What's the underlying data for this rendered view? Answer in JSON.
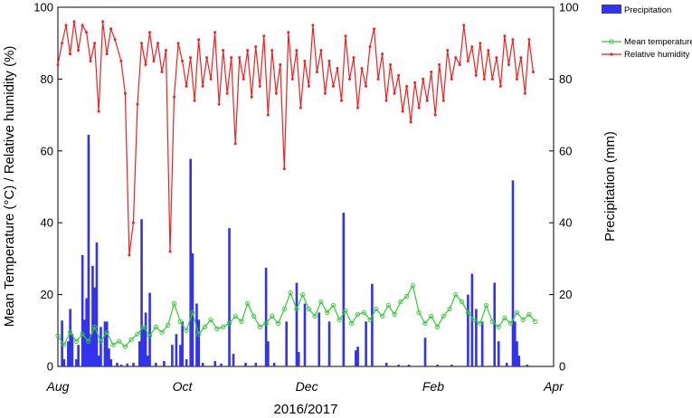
{
  "chart_data": {
    "type": "bar+line",
    "xlabel": "2016/2017",
    "ylabel_left": "Mean Temperature (°C) / Relative humidity (%)",
    "ylabel_right": "Precipitation (mm)",
    "x_ticks": [
      "Aug",
      "Oct",
      "Dec",
      "Feb",
      "Apr"
    ],
    "x_range": [
      "2016-08-01",
      "2017-04-01"
    ],
    "ylim_left": [
      0,
      100
    ],
    "ylim_right": [
      0,
      100
    ],
    "y_ticks_left": [
      "0",
      "20",
      "40",
      "60",
      "80",
      "100"
    ],
    "y_ticks_right": [
      "0",
      "20",
      "40",
      "60",
      "80",
      "100"
    ],
    "legend_position": "top-right",
    "series": [
      {
        "name": "Precipitation",
        "kind": "bar",
        "axis": "right",
        "color": "#3333ee",
        "points": [
          [
            "2016-08-03",
            12.8
          ],
          [
            "2016-08-04",
            2
          ],
          [
            "2016-08-06",
            7
          ],
          [
            "2016-08-07",
            16
          ],
          [
            "2016-08-08",
            9
          ],
          [
            "2016-08-10",
            2
          ],
          [
            "2016-08-11",
            6
          ],
          [
            "2016-08-13",
            31
          ],
          [
            "2016-08-14",
            13
          ],
          [
            "2016-08-15",
            19
          ],
          [
            "2016-08-16",
            64.5
          ],
          [
            "2016-08-17",
            9
          ],
          [
            "2016-08-18",
            28
          ],
          [
            "2016-08-19",
            22
          ],
          [
            "2016-08-20",
            34.5
          ],
          [
            "2016-08-21",
            3
          ],
          [
            "2016-08-22",
            11
          ],
          [
            "2016-08-24",
            12.5
          ],
          [
            "2016-08-25",
            12.5
          ],
          [
            "2016-08-26",
            5
          ],
          [
            "2016-08-27",
            2
          ],
          [
            "2016-08-30",
            1
          ],
          [
            "2016-09-01",
            0.5
          ],
          [
            "2016-09-04",
            0.8
          ],
          [
            "2016-09-07",
            1
          ],
          [
            "2016-09-10",
            7
          ],
          [
            "2016-09-11",
            41
          ],
          [
            "2016-09-12",
            11
          ],
          [
            "2016-09-13",
            15
          ],
          [
            "2016-09-14",
            3
          ],
          [
            "2016-09-15",
            20.5
          ],
          [
            "2016-09-18",
            1
          ],
          [
            "2016-09-22",
            1.5
          ],
          [
            "2016-09-26",
            6
          ],
          [
            "2016-09-28",
            9
          ],
          [
            "2016-09-30",
            6
          ],
          [
            "2016-10-01",
            12.5
          ],
          [
            "2016-10-03",
            2
          ],
          [
            "2016-10-05",
            57.8
          ],
          [
            "2016-10-06",
            31.5
          ],
          [
            "2016-10-08",
            17.5
          ],
          [
            "2016-10-09",
            13
          ],
          [
            "2016-10-11",
            1
          ],
          [
            "2016-10-17",
            1.5
          ],
          [
            "2016-10-20",
            0.8
          ],
          [
            "2016-10-24",
            38.5
          ],
          [
            "2016-10-26",
            3.5
          ],
          [
            "2016-11-01",
            1
          ],
          [
            "2016-11-06",
            1
          ],
          [
            "2016-11-11",
            27.5
          ],
          [
            "2016-11-12",
            7
          ],
          [
            "2016-11-15",
            1
          ],
          [
            "2016-11-21",
            12.5
          ],
          [
            "2016-11-26",
            23.3
          ],
          [
            "2016-11-27",
            4
          ],
          [
            "2016-11-30",
            17.5
          ],
          [
            "2016-12-07",
            15
          ],
          [
            "2016-12-12",
            12.5
          ],
          [
            "2016-12-19",
            42.8
          ],
          [
            "2016-12-25",
            4.5
          ],
          [
            "2016-12-26",
            5.5
          ],
          [
            "2016-12-30",
            12.5
          ],
          [
            "2017-01-02",
            23
          ],
          [
            "2017-01-09",
            1
          ],
          [
            "2017-01-15",
            0.5
          ],
          [
            "2017-01-20",
            0.5
          ],
          [
            "2017-01-28",
            8
          ],
          [
            "2017-02-03",
            0.5
          ],
          [
            "2017-02-10",
            0.5
          ],
          [
            "2017-02-18",
            20
          ],
          [
            "2017-02-20",
            25.8
          ],
          [
            "2017-02-22",
            16
          ],
          [
            "2017-02-25",
            12.5
          ],
          [
            "2017-03-03",
            23.3
          ],
          [
            "2017-03-05",
            7
          ],
          [
            "2017-03-09",
            1
          ],
          [
            "2017-03-12",
            51.8
          ],
          [
            "2017-03-13",
            12.5
          ],
          [
            "2017-03-14",
            7
          ],
          [
            "2017-03-15",
            3
          ],
          [
            "2017-03-19",
            0.5
          ]
        ]
      },
      {
        "name": "Mean temperature",
        "kind": "line",
        "axis": "left",
        "color": "#33cc33",
        "points": [
          [
            "2016-08-01",
            8.5
          ],
          [
            "2016-08-04",
            6
          ],
          [
            "2016-08-07",
            9.5
          ],
          [
            "2016-08-10",
            7
          ],
          [
            "2016-08-13",
            9
          ],
          [
            "2016-08-16",
            7
          ],
          [
            "2016-08-19",
            11
          ],
          [
            "2016-08-22",
            7
          ],
          [
            "2016-08-25",
            9.5
          ],
          [
            "2016-08-28",
            6
          ],
          [
            "2016-08-31",
            7
          ],
          [
            "2016-09-03",
            5.5
          ],
          [
            "2016-09-06",
            7.5
          ],
          [
            "2016-09-09",
            9
          ],
          [
            "2016-09-12",
            11
          ],
          [
            "2016-09-15",
            8.5
          ],
          [
            "2016-09-18",
            11
          ],
          [
            "2016-09-21",
            9.5
          ],
          [
            "2016-09-24",
            11.5
          ],
          [
            "2016-09-27",
            17.5
          ],
          [
            "2016-09-30",
            12.5
          ],
          [
            "2016-10-03",
            10
          ],
          [
            "2016-10-06",
            15
          ],
          [
            "2016-10-09",
            9
          ],
          [
            "2016-10-12",
            11
          ],
          [
            "2016-10-15",
            13
          ],
          [
            "2016-10-18",
            10.5
          ],
          [
            "2016-10-21",
            11
          ],
          [
            "2016-10-24",
            12
          ],
          [
            "2016-10-27",
            14
          ],
          [
            "2016-10-30",
            12.5
          ],
          [
            "2016-11-02",
            17.5
          ],
          [
            "2016-11-05",
            14
          ],
          [
            "2016-11-08",
            11
          ],
          [
            "2016-11-11",
            12
          ],
          [
            "2016-11-14",
            14
          ],
          [
            "2016-11-17",
            12
          ],
          [
            "2016-11-20",
            16
          ],
          [
            "2016-11-23",
            20.5
          ],
          [
            "2016-11-26",
            16
          ],
          [
            "2016-11-29",
            20
          ],
          [
            "2016-12-02",
            16
          ],
          [
            "2016-12-05",
            14
          ],
          [
            "2016-12-08",
            18
          ],
          [
            "2016-12-11",
            15
          ],
          [
            "2016-12-14",
            17
          ],
          [
            "2016-12-17",
            13
          ],
          [
            "2016-12-20",
            15.5
          ],
          [
            "2016-12-23",
            12
          ],
          [
            "2016-12-26",
            14.5
          ],
          [
            "2016-12-29",
            15
          ],
          [
            "2017-01-01",
            13
          ],
          [
            "2017-01-04",
            16
          ],
          [
            "2017-01-07",
            14
          ],
          [
            "2017-01-10",
            17
          ],
          [
            "2017-01-13",
            14.5
          ],
          [
            "2017-01-16",
            18
          ],
          [
            "2017-01-19",
            19.5
          ],
          [
            "2017-01-22",
            22.5
          ],
          [
            "2017-01-25",
            15
          ],
          [
            "2017-01-28",
            12
          ],
          [
            "2017-01-31",
            14
          ],
          [
            "2017-02-03",
            11
          ],
          [
            "2017-02-06",
            14
          ],
          [
            "2017-02-09",
            16
          ],
          [
            "2017-02-12",
            20
          ],
          [
            "2017-02-15",
            18
          ],
          [
            "2017-02-18",
            15
          ],
          [
            "2017-02-21",
            13
          ],
          [
            "2017-02-24",
            12
          ],
          [
            "2017-02-27",
            17
          ],
          [
            "2017-03-02",
            12.5
          ],
          [
            "2017-03-05",
            11
          ],
          [
            "2017-03-08",
            13.5
          ],
          [
            "2017-03-11",
            12
          ],
          [
            "2017-03-14",
            15
          ],
          [
            "2017-03-17",
            13
          ],
          [
            "2017-03-20",
            14.5
          ],
          [
            "2017-03-23",
            12.5
          ]
        ]
      },
      {
        "name": "Relative humidity",
        "kind": "line",
        "axis": "left",
        "color": "#ee2222",
        "points": [
          [
            "2016-08-01",
            84
          ],
          [
            "2016-08-03",
            90
          ],
          [
            "2016-08-05",
            95
          ],
          [
            "2016-08-07",
            87
          ],
          [
            "2016-08-09",
            96
          ],
          [
            "2016-08-11",
            88
          ],
          [
            "2016-08-13",
            95
          ],
          [
            "2016-08-15",
            93
          ],
          [
            "2016-08-17",
            85
          ],
          [
            "2016-08-19",
            90
          ],
          [
            "2016-08-21",
            71
          ],
          [
            "2016-08-23",
            96
          ],
          [
            "2016-08-25",
            87
          ],
          [
            "2016-08-27",
            94
          ],
          [
            "2016-08-29",
            91
          ],
          [
            "2016-09-01",
            85
          ],
          [
            "2016-09-03",
            76
          ],
          [
            "2016-09-05",
            31
          ],
          [
            "2016-09-07",
            40
          ],
          [
            "2016-09-09",
            73
          ],
          [
            "2016-09-11",
            90
          ],
          [
            "2016-09-13",
            84
          ],
          [
            "2016-09-15",
            93
          ],
          [
            "2016-09-17",
            85
          ],
          [
            "2016-09-19",
            90
          ],
          [
            "2016-09-21",
            82
          ],
          [
            "2016-09-23",
            88
          ],
          [
            "2016-09-25",
            32
          ],
          [
            "2016-09-27",
            75
          ],
          [
            "2016-09-29",
            90
          ],
          [
            "2016-10-01",
            85
          ],
          [
            "2016-10-03",
            78
          ],
          [
            "2016-10-05",
            86
          ],
          [
            "2016-10-07",
            74
          ],
          [
            "2016-10-09",
            91
          ],
          [
            "2016-10-11",
            78
          ],
          [
            "2016-10-13",
            86
          ],
          [
            "2016-10-15",
            80
          ],
          [
            "2016-10-17",
            93
          ],
          [
            "2016-10-19",
            73
          ],
          [
            "2016-10-21",
            88
          ],
          [
            "2016-10-23",
            76
          ],
          [
            "2016-10-25",
            86
          ],
          [
            "2016-10-27",
            62
          ],
          [
            "2016-10-29",
            86
          ],
          [
            "2016-10-31",
            80
          ],
          [
            "2016-11-02",
            88
          ],
          [
            "2016-11-04",
            75
          ],
          [
            "2016-11-06",
            89
          ],
          [
            "2016-11-08",
            78
          ],
          [
            "2016-11-10",
            92
          ],
          [
            "2016-11-12",
            70
          ],
          [
            "2016-11-14",
            88
          ],
          [
            "2016-11-16",
            76
          ],
          [
            "2016-11-18",
            84
          ],
          [
            "2016-11-20",
            55
          ],
          [
            "2016-11-22",
            93
          ],
          [
            "2016-11-24",
            80
          ],
          [
            "2016-11-26",
            88
          ],
          [
            "2016-11-28",
            72
          ],
          [
            "2016-11-30",
            85
          ],
          [
            "2016-12-02",
            78
          ],
          [
            "2016-12-04",
            95
          ],
          [
            "2016-12-06",
            82
          ],
          [
            "2016-12-08",
            88
          ],
          [
            "2016-12-10",
            76
          ],
          [
            "2016-12-12",
            85
          ],
          [
            "2016-12-14",
            78
          ],
          [
            "2016-12-16",
            83
          ],
          [
            "2016-12-18",
            74
          ],
          [
            "2016-12-20",
            92
          ],
          [
            "2016-12-22",
            80
          ],
          [
            "2016-12-24",
            86
          ],
          [
            "2016-12-26",
            72
          ],
          [
            "2016-12-28",
            83
          ],
          [
            "2016-12-30",
            78
          ],
          [
            "2017-01-01",
            89
          ],
          [
            "2017-01-03",
            94
          ],
          [
            "2017-01-05",
            80
          ],
          [
            "2017-01-07",
            87
          ],
          [
            "2017-01-09",
            74
          ],
          [
            "2017-01-11",
            84
          ],
          [
            "2017-01-13",
            76
          ],
          [
            "2017-01-15",
            81
          ],
          [
            "2017-01-17",
            71
          ],
          [
            "2017-01-19",
            78
          ],
          [
            "2017-01-21",
            68
          ],
          [
            "2017-01-23",
            79
          ],
          [
            "2017-01-25",
            72
          ],
          [
            "2017-01-27",
            80
          ],
          [
            "2017-01-29",
            74
          ],
          [
            "2017-01-31",
            82
          ],
          [
            "2017-02-02",
            70
          ],
          [
            "2017-02-04",
            84
          ],
          [
            "2017-02-06",
            74
          ],
          [
            "2017-02-08",
            88
          ],
          [
            "2017-02-10",
            80
          ],
          [
            "2017-02-12",
            86
          ],
          [
            "2017-02-14",
            84
          ],
          [
            "2017-02-16",
            95
          ],
          [
            "2017-02-18",
            85
          ],
          [
            "2017-02-20",
            89
          ],
          [
            "2017-02-22",
            81
          ],
          [
            "2017-02-24",
            90
          ],
          [
            "2017-02-26",
            80
          ],
          [
            "2017-02-28",
            88
          ],
          [
            "2017-03-02",
            80
          ],
          [
            "2017-03-04",
            86
          ],
          [
            "2017-03-06",
            78
          ],
          [
            "2017-03-08",
            92
          ],
          [
            "2017-03-10",
            84
          ],
          [
            "2017-03-12",
            91
          ],
          [
            "2017-03-14",
            80
          ],
          [
            "2017-03-16",
            86
          ],
          [
            "2017-03-18",
            76
          ],
          [
            "2017-03-20",
            91
          ],
          [
            "2017-03-22",
            82
          ]
        ]
      }
    ]
  }
}
